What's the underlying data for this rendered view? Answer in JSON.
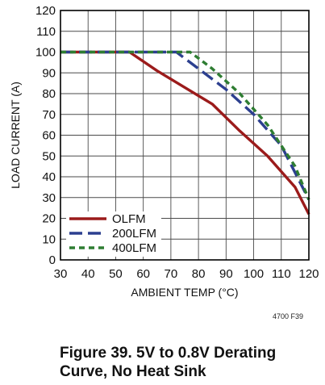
{
  "chart_data": {
    "type": "line",
    "xlabel": "AMBIENT TEMP (°C)",
    "ylabel": "LOAD CURRENT (A)",
    "xlim": [
      30,
      120
    ],
    "ylim": [
      0,
      120
    ],
    "x_ticks": [
      30,
      40,
      50,
      60,
      70,
      80,
      90,
      100,
      110,
      120
    ],
    "y_ticks": [
      0,
      10,
      20,
      30,
      40,
      50,
      60,
      70,
      80,
      90,
      100,
      110,
      120
    ],
    "grid": true,
    "legend": "bottom-left",
    "series": [
      {
        "name": "OLFM",
        "color": "#9b1b1b",
        "dash": "solid",
        "x": [
          30,
          55,
          65,
          75,
          85,
          95,
          105,
          115,
          120
        ],
        "y": [
          100,
          100,
          91,
          83,
          75,
          62,
          50,
          35,
          22
        ]
      },
      {
        "name": "200LFM",
        "color": "#2c3f8f",
        "dash": "long-dash",
        "x": [
          30,
          72,
          80,
          90,
          100,
          110,
          120
        ],
        "y": [
          100,
          100,
          92,
          82,
          70,
          55,
          29
        ]
      },
      {
        "name": "400LFM",
        "color": "#2e7d32",
        "dash": "short-dash",
        "x": [
          30,
          77,
          85,
          95,
          105,
          115,
          120
        ],
        "y": [
          100,
          100,
          92,
          80,
          65,
          45,
          29
        ]
      }
    ]
  },
  "figure_code": "4700 F39",
  "caption": {
    "line1": "Figure 39. 5V to 0.8V Derating",
    "line2": "Curve, No Heat Sink"
  }
}
